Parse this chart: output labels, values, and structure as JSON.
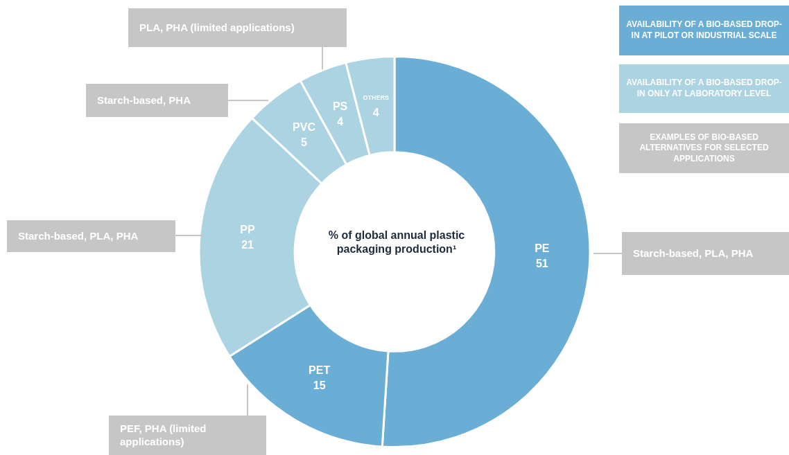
{
  "chart_data": {
    "type": "donut",
    "title": "% of global annual plastic packaging production¹",
    "categories": [
      "PE",
      "PET",
      "PP",
      "PVC",
      "PS",
      "OTHERS"
    ],
    "values": [
      51,
      15,
      21,
      5,
      4,
      4
    ],
    "colors": [
      "#6aaed6",
      "#6aaed6",
      "#acd3e1",
      "#acd3e1",
      "#acd3e1",
      "#acd3e1"
    ],
    "data_labels": true,
    "annotations": [
      "AVAILABILITY OF A BIO-BASED DROP-IN AT PILOT OR INDUSTRIAL SCALE",
      "AVAILABILITY OF A BIO-BASED DROP-IN ONLY AT LABORATORY LEVEL",
      "EXAMPLES OF BIO-BASED ALTERNATIVES FOR SELECTED APPLICATIONS",
      {
        "text": "Starch-based, PLA, PHA",
        "x": "PE"
      },
      {
        "text": "PEF, PHA (limited applications)",
        "x": "PET"
      },
      {
        "text": "Starch-based, PLA, PHA",
        "x": "PP"
      },
      {
        "text": "Starch-based, PHA",
        "x": "PVC"
      },
      {
        "text": "PLA, PHA (limited applications)",
        "x": "PS"
      }
    ]
  }
}
